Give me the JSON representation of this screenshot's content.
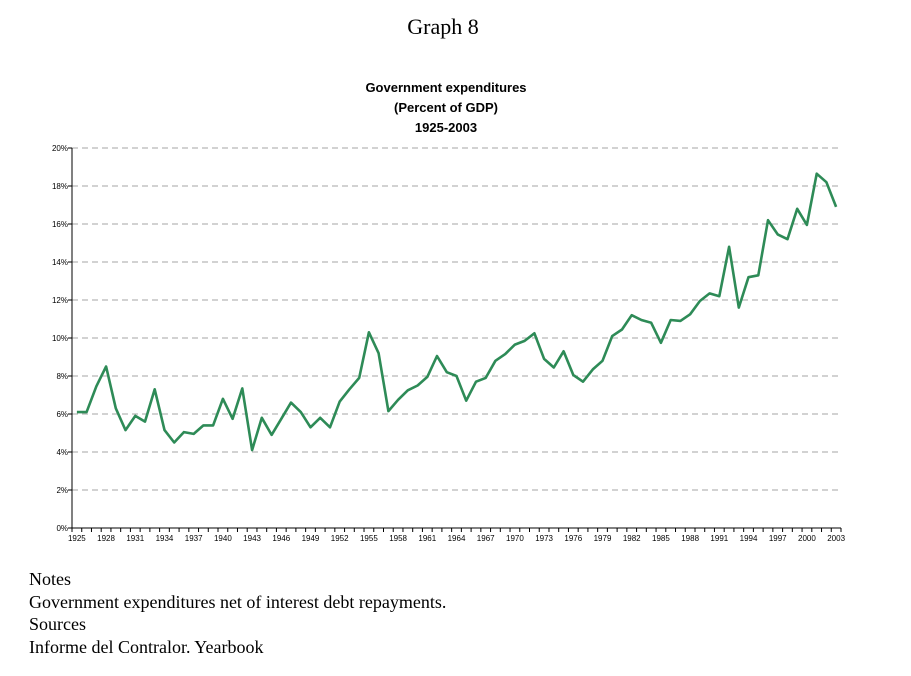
{
  "graph_label": "Graph 8",
  "chart_data": {
    "type": "line",
    "title": [
      "Government expenditures",
      "(Percent of GDP)",
      "1925-2003"
    ],
    "xlabel": "",
    "ylabel": "",
    "ylim": [
      0,
      20
    ],
    "yticks": [
      "0%",
      "2%",
      "4%",
      "6%",
      "8%",
      "10%",
      "12%",
      "14%",
      "16%",
      "18%",
      "20%"
    ],
    "xtick_labels": [
      "1925",
      "1928",
      "1931",
      "1934",
      "1937",
      "1940",
      "1943",
      "1946",
      "1949",
      "1952",
      "1955",
      "1958",
      "1961",
      "1964",
      "1967",
      "1970",
      "1973",
      "1976",
      "1979",
      "1982",
      "1985",
      "1988",
      "1991",
      "1994",
      "1997",
      "2000",
      "2003"
    ],
    "grid": "horizontal dashed",
    "line_color": "#2e8b57",
    "x": [
      1925,
      1926,
      1927,
      1928,
      1929,
      1930,
      1931,
      1932,
      1933,
      1934,
      1935,
      1936,
      1937,
      1938,
      1939,
      1940,
      1941,
      1942,
      1943,
      1944,
      1945,
      1946,
      1947,
      1948,
      1949,
      1950,
      1951,
      1952,
      1953,
      1954,
      1955,
      1956,
      1957,
      1958,
      1959,
      1960,
      1961,
      1962,
      1963,
      1964,
      1965,
      1966,
      1967,
      1968,
      1969,
      1970,
      1971,
      1972,
      1973,
      1974,
      1975,
      1976,
      1977,
      1978,
      1979,
      1980,
      1981,
      1982,
      1983,
      1984,
      1985,
      1986,
      1987,
      1988,
      1989,
      1990,
      1991,
      1992,
      1993,
      1994,
      1995,
      1996,
      1997,
      1998,
      1999,
      2000,
      2001,
      2002,
      2003
    ],
    "values": [
      6.1,
      6.1,
      7.45,
      8.5,
      6.3,
      5.15,
      5.9,
      5.6,
      7.3,
      5.15,
      4.5,
      5.05,
      4.95,
      5.4,
      5.4,
      6.8,
      5.75,
      7.35,
      4.1,
      5.8,
      4.9,
      5.75,
      6.6,
      6.1,
      5.3,
      5.8,
      5.3,
      6.65,
      7.3,
      7.9,
      10.3,
      9.2,
      6.15,
      6.75,
      7.25,
      7.5,
      7.95,
      9.05,
      8.2,
      8.0,
      6.7,
      7.7,
      7.9,
      8.8,
      9.15,
      9.65,
      9.85,
      10.25,
      8.9,
      8.45,
      9.3,
      8.05,
      7.7,
      8.35,
      8.8,
      10.1,
      10.45,
      11.2,
      10.95,
      10.8,
      9.75,
      10.95,
      10.9,
      11.25,
      11.95,
      12.35,
      12.2,
      14.8,
      11.6,
      13.2,
      13.3,
      16.2,
      15.45,
      15.2,
      16.8,
      15.95,
      18.65,
      18.2,
      16.9
    ]
  },
  "notes": {
    "notes_heading": "Notes",
    "notes_text": "Government expenditures net of interest debt repayments.",
    "sources_heading": "Sources",
    "sources_text": "Informe del Contralor. Yearbook"
  }
}
